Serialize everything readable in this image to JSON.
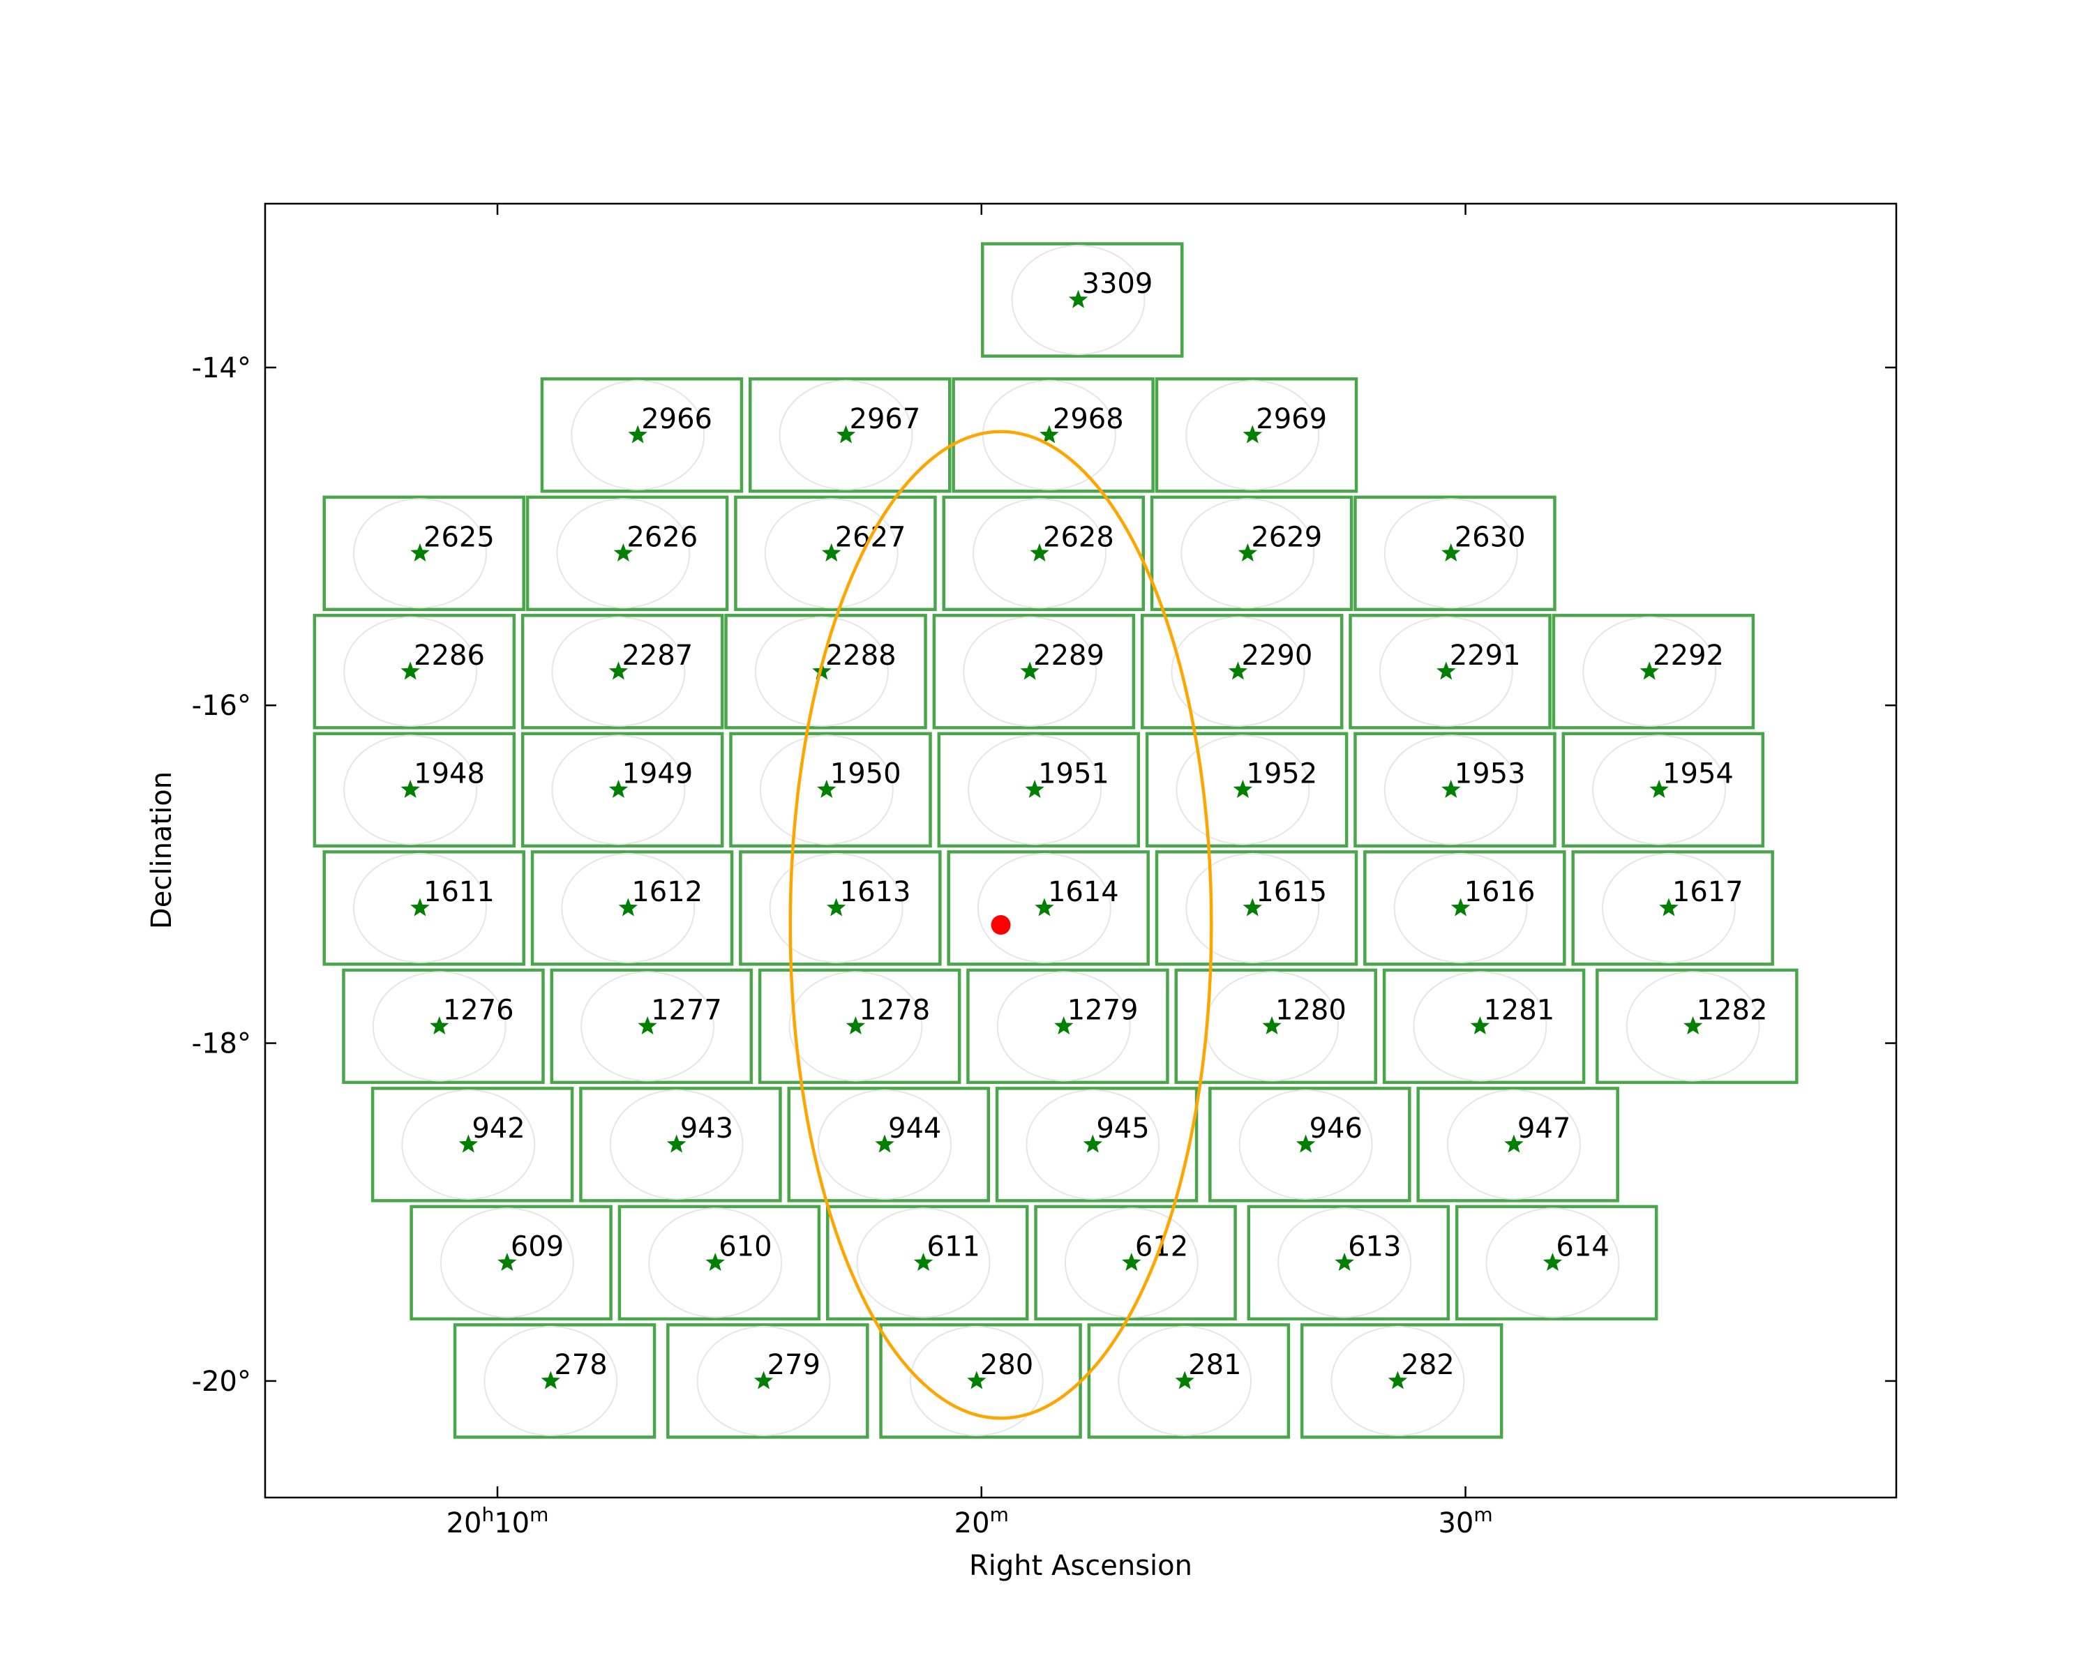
{
  "chart_data": {
    "type": "scatter",
    "title": "",
    "xlabel": "Right Ascension",
    "ylabel": "Declination",
    "x_unit": "RA minutes past 20h",
    "y_unit": "degrees",
    "xlim": [
      5.2,
      38.9
    ],
    "ylim": [
      -20.69,
      -13.03
    ],
    "x_ticks": [
      {
        "value": 10,
        "label_main": "20",
        "label_h": "h",
        "label_mid": "10",
        "label_m": "m"
      },
      {
        "value": 20,
        "label_main": "",
        "label_h": "",
        "label_mid": "20",
        "label_m": "m"
      },
      {
        "value": 30,
        "label_main": "",
        "label_h": "",
        "label_mid": "30",
        "label_m": "m"
      }
    ],
    "y_ticks": [
      {
        "value": -14,
        "label": "-14°"
      },
      {
        "value": -16,
        "label": "-16°"
      },
      {
        "value": -18,
        "label": "-18°"
      },
      {
        "value": -20,
        "label": "-20°"
      }
    ],
    "grid": false,
    "colors": {
      "field_box": "#4aa64a",
      "field_star": "#007f00",
      "circle": "#ffa500",
      "center": "#ff0000",
      "faint_ellipse": "#e6e6e6"
    },
    "center_point": {
      "x": 20.4,
      "y": -17.3
    },
    "circle": {
      "x": 20.4,
      "y": -17.3,
      "radius_deg": 3.0
    },
    "fields": [
      {
        "label": "3309",
        "x": 22.0,
        "y": -13.6
      },
      {
        "label": "2966",
        "x": 12.9,
        "y": -14.4
      },
      {
        "label": "2967",
        "x": 17.2,
        "y": -14.4
      },
      {
        "label": "2968",
        "x": 21.4,
        "y": -14.4
      },
      {
        "label": "2969",
        "x": 25.6,
        "y": -14.4
      },
      {
        "label": "2625",
        "x": 8.4,
        "y": -15.1
      },
      {
        "label": "2626",
        "x": 12.6,
        "y": -15.1
      },
      {
        "label": "2627",
        "x": 16.9,
        "y": -15.1
      },
      {
        "label": "2628",
        "x": 21.2,
        "y": -15.1
      },
      {
        "label": "2629",
        "x": 25.5,
        "y": -15.1
      },
      {
        "label": "2630",
        "x": 29.7,
        "y": -15.1
      },
      {
        "label": "2286",
        "x": 8.2,
        "y": -15.8
      },
      {
        "label": "2287",
        "x": 12.5,
        "y": -15.8
      },
      {
        "label": "2288",
        "x": 16.7,
        "y": -15.8
      },
      {
        "label": "2289",
        "x": 21.0,
        "y": -15.8
      },
      {
        "label": "2290",
        "x": 25.3,
        "y": -15.8
      },
      {
        "label": "2291",
        "x": 29.6,
        "y": -15.8
      },
      {
        "label": "2292",
        "x": 33.8,
        "y": -15.8
      },
      {
        "label": "1948",
        "x": 8.2,
        "y": -16.5
      },
      {
        "label": "1949",
        "x": 12.5,
        "y": -16.5
      },
      {
        "label": "1950",
        "x": 16.8,
        "y": -16.5
      },
      {
        "label": "1951",
        "x": 21.1,
        "y": -16.5
      },
      {
        "label": "1952",
        "x": 25.4,
        "y": -16.5
      },
      {
        "label": "1953",
        "x": 29.7,
        "y": -16.5
      },
      {
        "label": "1954",
        "x": 34.0,
        "y": -16.5
      },
      {
        "label": "1611",
        "x": 8.4,
        "y": -17.2
      },
      {
        "label": "1612",
        "x": 12.7,
        "y": -17.2
      },
      {
        "label": "1613",
        "x": 17.0,
        "y": -17.2
      },
      {
        "label": "1614",
        "x": 21.3,
        "y": -17.2
      },
      {
        "label": "1615",
        "x": 25.6,
        "y": -17.2
      },
      {
        "label": "1616",
        "x": 29.9,
        "y": -17.2
      },
      {
        "label": "1617",
        "x": 34.2,
        "y": -17.2
      },
      {
        "label": "1276",
        "x": 8.8,
        "y": -17.9
      },
      {
        "label": "1277",
        "x": 13.1,
        "y": -17.9
      },
      {
        "label": "1278",
        "x": 17.4,
        "y": -17.9
      },
      {
        "label": "1279",
        "x": 21.7,
        "y": -17.9
      },
      {
        "label": "1280",
        "x": 26.0,
        "y": -17.9
      },
      {
        "label": "1281",
        "x": 30.3,
        "y": -17.9
      },
      {
        "label": "1282",
        "x": 34.7,
        "y": -17.9
      },
      {
        "label": "942",
        "x": 9.4,
        "y": -18.6
      },
      {
        "label": "943",
        "x": 13.7,
        "y": -18.6
      },
      {
        "label": "944",
        "x": 18.0,
        "y": -18.6
      },
      {
        "label": "945",
        "x": 22.3,
        "y": -18.6
      },
      {
        "label": "946",
        "x": 26.7,
        "y": -18.6
      },
      {
        "label": "947",
        "x": 31.0,
        "y": -18.6
      },
      {
        "label": "609",
        "x": 10.2,
        "y": -19.3
      },
      {
        "label": "610",
        "x": 14.5,
        "y": -19.3
      },
      {
        "label": "611",
        "x": 18.8,
        "y": -19.3
      },
      {
        "label": "612",
        "x": 23.1,
        "y": -19.3
      },
      {
        "label": "613",
        "x": 27.5,
        "y": -19.3
      },
      {
        "label": "614",
        "x": 31.8,
        "y": -19.3
      },
      {
        "label": "278",
        "x": 11.1,
        "y": -20.0
      },
      {
        "label": "279",
        "x": 15.5,
        "y": -20.0
      },
      {
        "label": "280",
        "x": 19.9,
        "y": -20.0
      },
      {
        "label": "281",
        "x": 24.2,
        "y": -20.0
      },
      {
        "label": "282",
        "x": 28.6,
        "y": -20.0
      }
    ]
  }
}
